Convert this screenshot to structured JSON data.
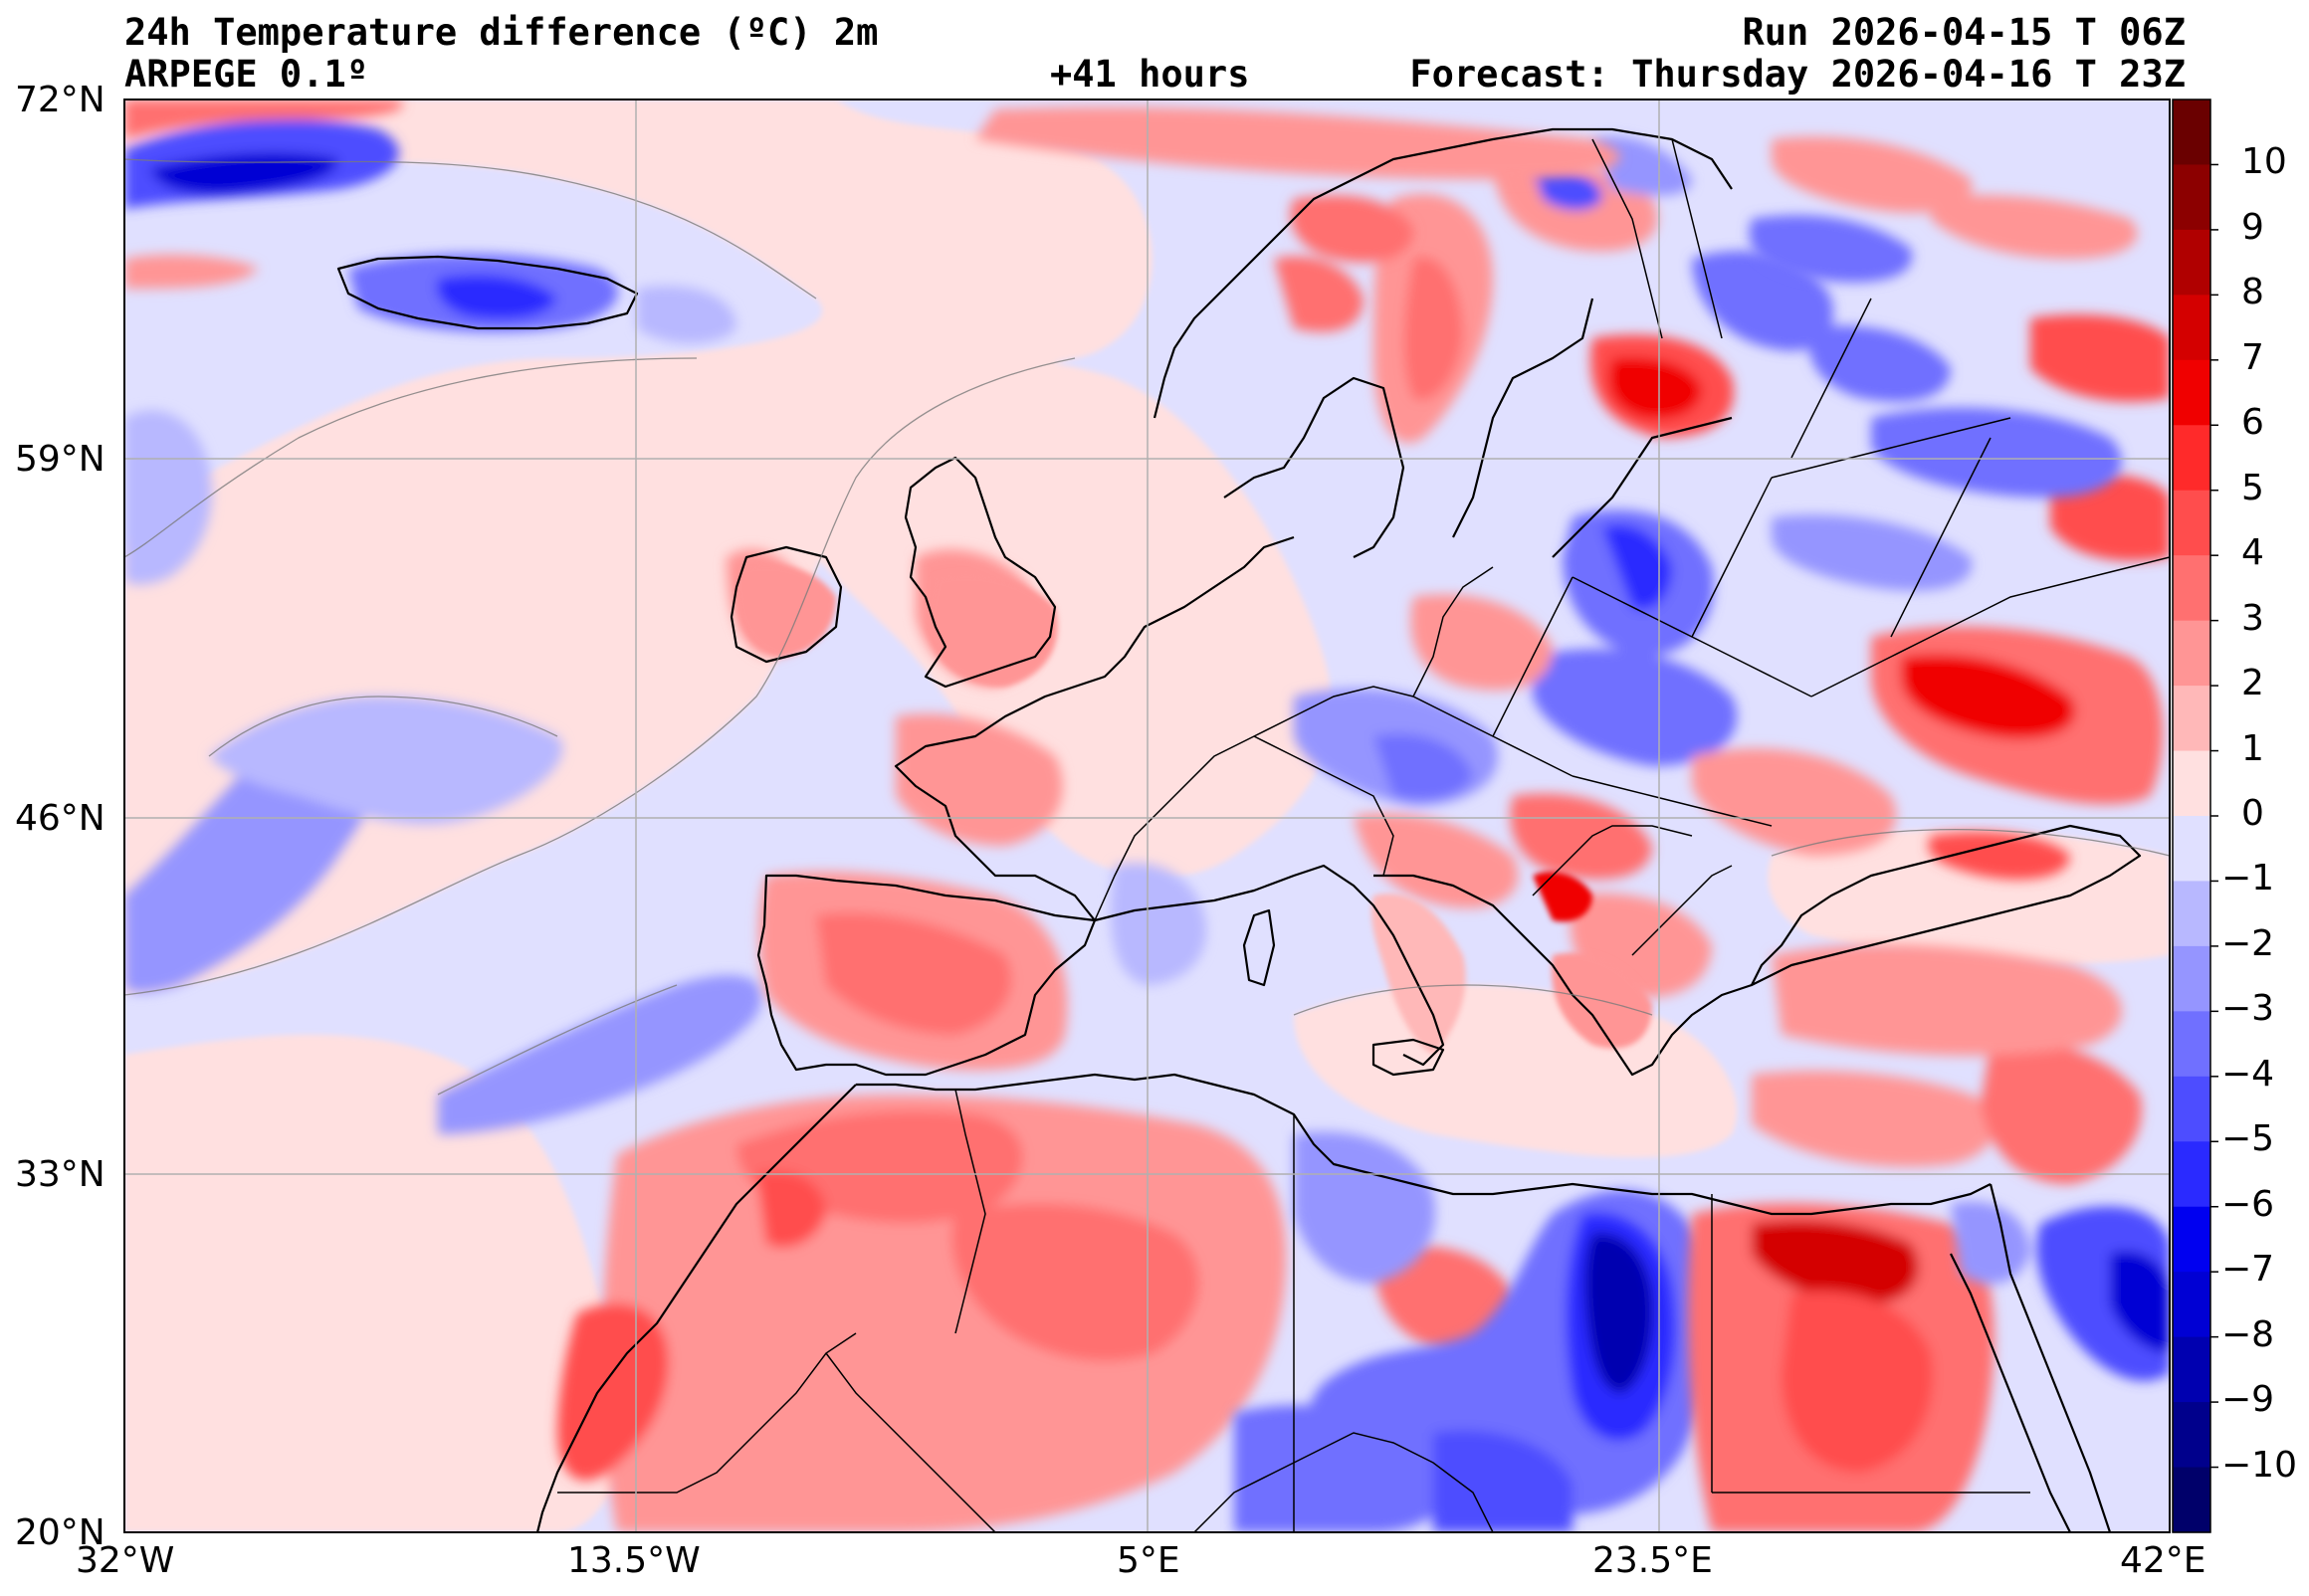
{
  "header": {
    "title": "24h Temperature difference (ºC) 2m",
    "model": "ARPEGE 0.1º",
    "run": "Run 2026-04-15 T 06Z",
    "lead": "+41 hours",
    "forecast": "Forecast: Thursday 2026-04-16 T 23Z"
  },
  "map": {
    "lat_labels": [
      "72°N",
      "59°N",
      "46°N",
      "33°N",
      "20°N"
    ],
    "lon_labels": [
      "32°W",
      "13.5°W",
      "5°E",
      "23.5°E",
      "42°E"
    ],
    "extent": {
      "lon_min": -32,
      "lon_max": 42,
      "lat_min": 20,
      "lat_max": 72
    },
    "grid": true
  },
  "colorbar": {
    "ticks": [
      "10",
      "9",
      "8",
      "7",
      "6",
      "5",
      "4",
      "3",
      "2",
      "1",
      "0",
      "−1",
      "−2",
      "−3",
      "−4",
      "−5",
      "−6",
      "−7",
      "−8",
      "−9",
      "−10"
    ],
    "colors": [
      "#6a0000",
      "#8c0000",
      "#b00000",
      "#d40000",
      "#f00000",
      "#ff2a2a",
      "#ff4d4d",
      "#ff7070",
      "#ff9595",
      "#ffb8b8",
      "#ffe0e0",
      "#e0e0ff",
      "#b8b8ff",
      "#9595ff",
      "#7070ff",
      "#4d4dff",
      "#2a2aff",
      "#0000f0",
      "#0000d4",
      "#0000b0",
      "#00008c",
      "#00006a"
    ]
  }
}
